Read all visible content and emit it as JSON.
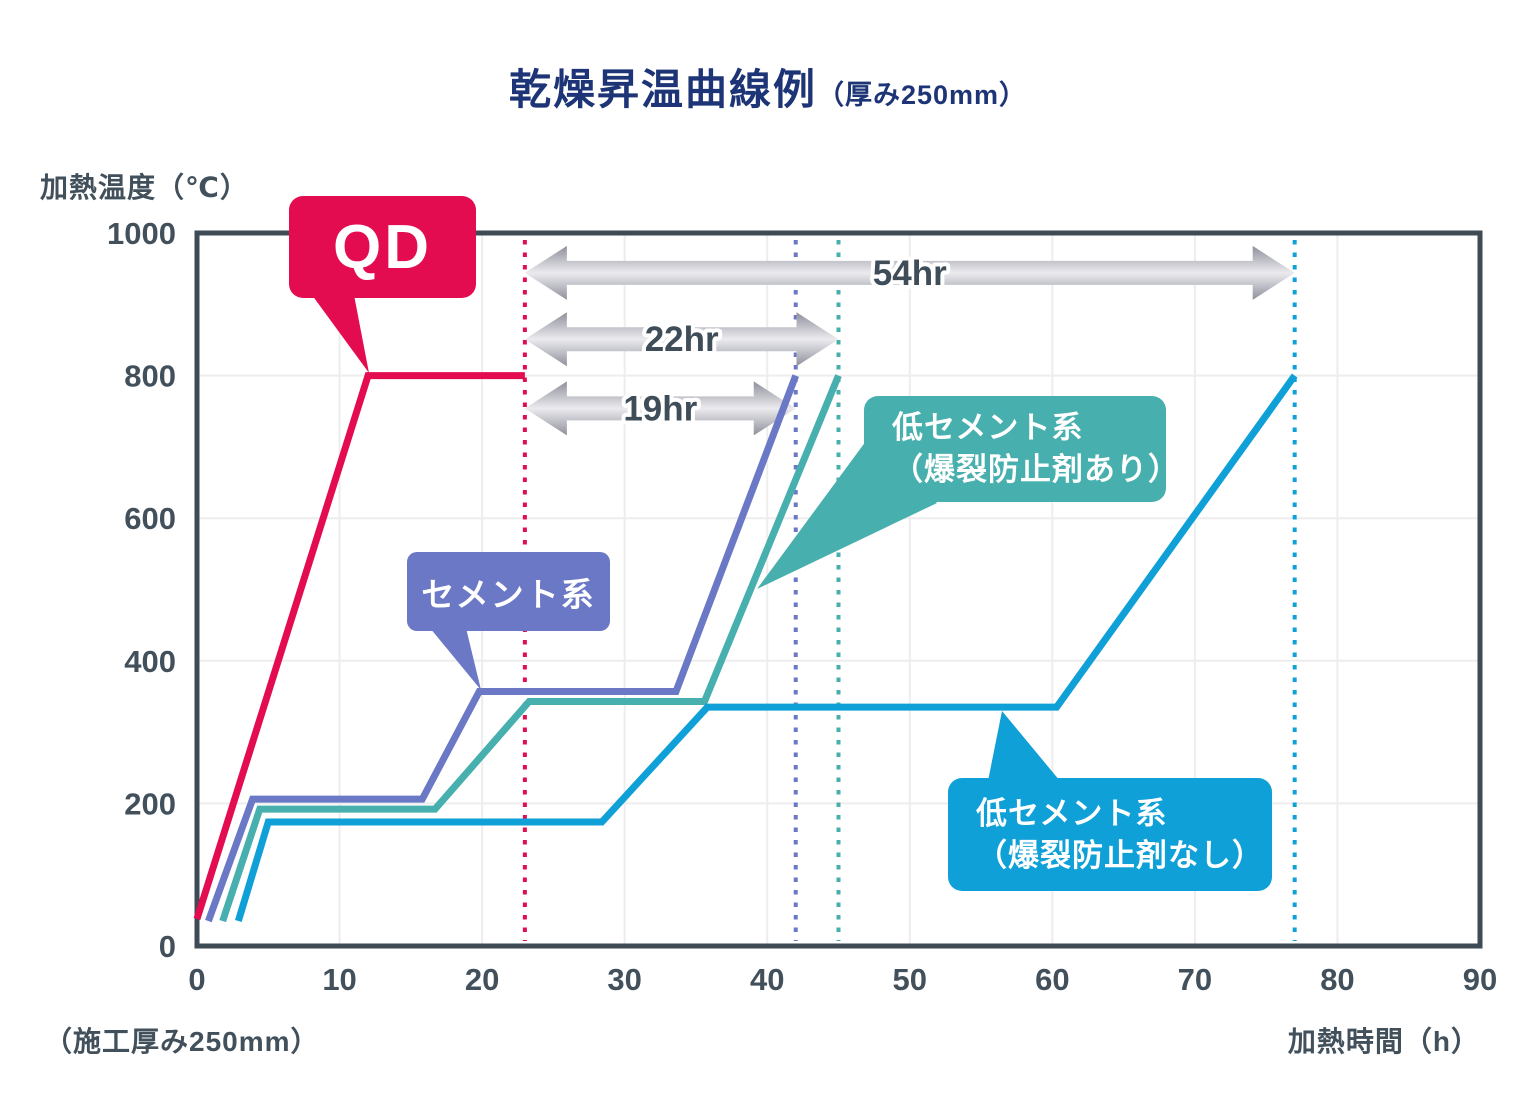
{
  "title": {
    "main": "乾燥昇温曲線例",
    "suffix": "（厚み250mm）"
  },
  "axes": {
    "y_axis_label": "加熱温度（℃）",
    "x_axis_label": "加熱時間（h）",
    "footnote": "（施工厚み250mm）",
    "x_ticks": [
      0,
      10,
      20,
      30,
      40,
      50,
      60,
      70,
      80,
      90
    ],
    "y_ticks": [
      0,
      200,
      400,
      600,
      800,
      1000
    ]
  },
  "colors": {
    "qd": "#e40c50",
    "cement": "#6a78c5",
    "low_cement_with_agent": "#47afad",
    "low_cement_without_agent": "#0fa0d8",
    "title_navy": "#1d3476",
    "axis_text": "#42505c",
    "frame": "#3e4b55",
    "grid": "#ededed",
    "arrow_edge": "#8f8f9a",
    "arrow_mid": "#ebebef"
  },
  "chart_data": {
    "type": "line",
    "title": "乾燥昇温曲線例（厚み250mm）",
    "xlabel": "加熱時間（h）",
    "ylabel": "加熱温度（℃）",
    "xlim": [
      0,
      90
    ],
    "ylim": [
      0,
      1000
    ],
    "grid": true,
    "legend_position": "callouts-on-plot",
    "series": [
      {
        "name": "QD",
        "color": "#e40c50",
        "points": [
          [
            0,
            38
          ],
          [
            12,
            800
          ],
          [
            23,
            800
          ]
        ]
      },
      {
        "name": "セメント系",
        "color": "#6a78c5",
        "points": [
          [
            0.8,
            35
          ],
          [
            3.9,
            206
          ],
          [
            15.8,
            206
          ],
          [
            19.8,
            357
          ],
          [
            33.6,
            357
          ],
          [
            42,
            800
          ]
        ]
      },
      {
        "name": "低セメント系（爆裂防止剤あり）",
        "color": "#47afad",
        "points": [
          [
            1.8,
            35
          ],
          [
            4.4,
            192
          ],
          [
            16.7,
            192
          ],
          [
            23.3,
            343
          ],
          [
            35.6,
            343
          ],
          [
            45,
            800
          ]
        ]
      },
      {
        "name": "低セメント系（爆裂防止剤なし）",
        "color": "#0fa0d8",
        "points": [
          [
            2.9,
            35
          ],
          [
            5.0,
            174
          ],
          [
            28.4,
            174
          ],
          [
            35.8,
            335
          ],
          [
            60.3,
            335
          ],
          [
            77,
            800
          ]
        ]
      }
    ],
    "completion_vlines": [
      {
        "x": 23,
        "color": "#e40c50",
        "series": "QD"
      },
      {
        "x": 42,
        "color": "#6a78c5",
        "series": "セメント系"
      },
      {
        "x": 45,
        "color": "#47afad",
        "series": "低セメント系（爆裂防止剤あり）"
      },
      {
        "x": 77,
        "color": "#0fa0d8",
        "series": "低セメント系（爆裂防止剤なし）"
      }
    ],
    "duration_arrows": [
      {
        "label": "54hr",
        "x_from": 23,
        "x_to": 77,
        "y_at_temp": 944
      },
      {
        "label": "22hr",
        "x_from": 23,
        "x_to": 45,
        "y_at_temp": 851
      },
      {
        "label": "19hr",
        "x_from": 23,
        "x_to": 42,
        "y_at_temp": 754
      }
    ]
  },
  "callouts": [
    {
      "label": "QD",
      "color": "#e40c50",
      "anchor_x": 12,
      "anchor_y": 800
    },
    {
      "label": "セメント系",
      "color": "#6a78c5",
      "anchor_x": 19.8,
      "anchor_y": 357
    },
    {
      "line1": "低セメント系",
      "line2": "（爆裂防止剤あり）",
      "color": "#47afad",
      "anchor_x": 39.3,
      "anchor_y": 505
    },
    {
      "line1": "低セメント系",
      "line2": "（爆裂防止剤なし）",
      "color": "#0fa0d8",
      "anchor_x": 56.5,
      "anchor_y": 335
    }
  ]
}
